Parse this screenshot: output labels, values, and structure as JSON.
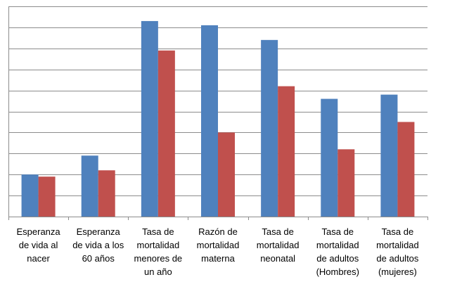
{
  "chart_data": {
    "type": "bar",
    "title": "",
    "xlabel": "",
    "ylabel": "",
    "ylim": [
      0,
      10
    ],
    "grid": true,
    "categories": [
      [
        "Esperanza",
        "de vida al",
        "nacer"
      ],
      [
        "Esperanza",
        "de vida a los",
        "60 años"
      ],
      [
        "Tasa de",
        "mortalidad",
        "menores de",
        "un año"
      ],
      [
        "Razón de",
        "mortalidad",
        "materna"
      ],
      [
        "Tasa de",
        "mortalidad",
        "neonatal"
      ],
      [
        "Tasa de",
        "mortalidad",
        "de adultos",
        "(Hombres)"
      ],
      [
        "Tasa de",
        "mortalidad",
        "de adultos",
        "(mujeres)"
      ]
    ],
    "series": [
      {
        "color": "#4f81bd",
        "values": [
          2.0,
          2.9,
          9.3,
          9.1,
          8.4,
          5.6,
          5.8
        ]
      },
      {
        "color": "#c0504d",
        "values": [
          1.9,
          2.2,
          7.9,
          4.0,
          6.2,
          3.2,
          4.5
        ]
      }
    ]
  }
}
